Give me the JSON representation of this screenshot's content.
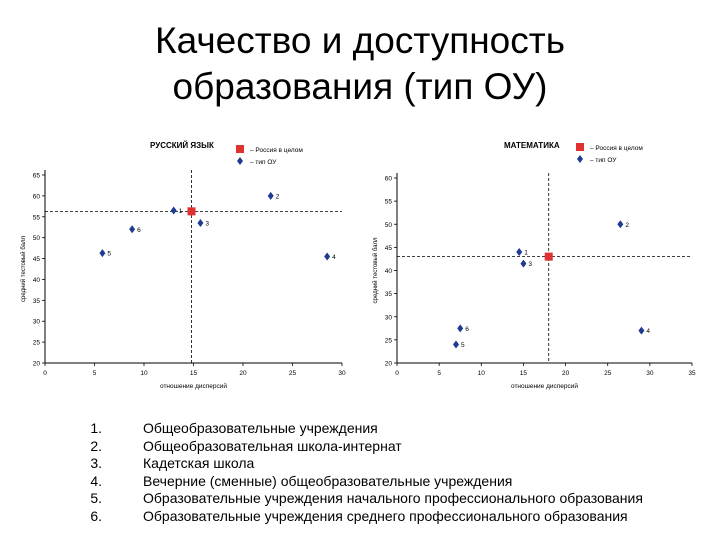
{
  "slide": {
    "title_lines": [
      "Качество и доступность",
      "образования (тип ОУ)"
    ]
  },
  "colors": {
    "series_points": "#1f3a93",
    "russia_marker": "#e03030",
    "axis": "#000000",
    "reference_line": "#000000"
  },
  "chart_data": [
    {
      "type": "scatter",
      "title": "РУССКИЙ ЯЗЫК",
      "xlabel": "отношение дисперсий",
      "ylabel": "средний тестовый балл",
      "xlim": [
        0,
        30
      ],
      "ylim": [
        20,
        65
      ],
      "xticks": [
        0,
        5,
        10,
        15,
        20,
        25,
        30
      ],
      "yticks": [
        20,
        25,
        30,
        35,
        40,
        45,
        50,
        55,
        60,
        65
      ],
      "legend": [
        "– Россия в целом",
        "– тип ОУ"
      ],
      "series": [
        {
          "name": "– тип ОУ",
          "marker": "diamond",
          "points": [
            {
              "label": "1",
              "x": 13.0,
              "y": 56.5
            },
            {
              "label": "2",
              "x": 22.8,
              "y": 60.0
            },
            {
              "label": "3",
              "x": 15.7,
              "y": 53.5
            },
            {
              "label": "4",
              "x": 28.5,
              "y": 45.5
            },
            {
              "label": "5",
              "x": 5.8,
              "y": 46.3
            },
            {
              "label": "6",
              "x": 8.8,
              "y": 52.0
            }
          ]
        },
        {
          "name": "– Россия в целом",
          "marker": "square",
          "points": [
            {
              "label": "",
              "x": 14.8,
              "y": 56.3
            }
          ]
        }
      ],
      "reference_lines": {
        "x": 14.8,
        "y": 56.3
      }
    },
    {
      "type": "scatter",
      "title": "МАТЕМАТИКА",
      "xlabel": "отношение дисперсий",
      "ylabel": "средний тестовый балл",
      "xlim": [
        0,
        35
      ],
      "ylim": [
        20,
        60
      ],
      "xticks": [
        0,
        5,
        10,
        15,
        20,
        25,
        30,
        35
      ],
      "yticks": [
        20,
        25,
        30,
        35,
        40,
        45,
        50,
        55,
        60
      ],
      "legend": [
        "– Россия в целом",
        "– тип ОУ"
      ],
      "series": [
        {
          "name": "– тип ОУ",
          "marker": "diamond",
          "points": [
            {
              "label": "1",
              "x": 14.5,
              "y": 44.0
            },
            {
              "label": "2",
              "x": 26.5,
              "y": 50.0
            },
            {
              "label": "3",
              "x": 15.0,
              "y": 41.5
            },
            {
              "label": "4",
              "x": 29.0,
              "y": 27.0
            },
            {
              "label": "5",
              "x": 7.0,
              "y": 24.0
            },
            {
              "label": "6",
              "x": 7.5,
              "y": 27.5
            }
          ]
        },
        {
          "name": "– Россия в целом",
          "marker": "square",
          "points": [
            {
              "label": "",
              "x": 18.0,
              "y": 43.0
            }
          ]
        }
      ],
      "reference_lines": {
        "x": 18.0,
        "y": 43.0
      }
    }
  ],
  "types_list": [
    {
      "num": "1.",
      "text": "Общеобразовательные учреждения"
    },
    {
      "num": "2.",
      "text": "Общеобразовательная школа-интернат"
    },
    {
      "num": "3.",
      "text": "Кадетская школа"
    },
    {
      "num": "4.",
      "text": "Вечерние (сменные) общеобразовательные учреждения"
    },
    {
      "num": "5.",
      "text": "Образовательные учреждения начального профессионального образования"
    },
    {
      "num": "6.",
      "text": "Образовательные учреждения среднего профессионального образования"
    }
  ]
}
